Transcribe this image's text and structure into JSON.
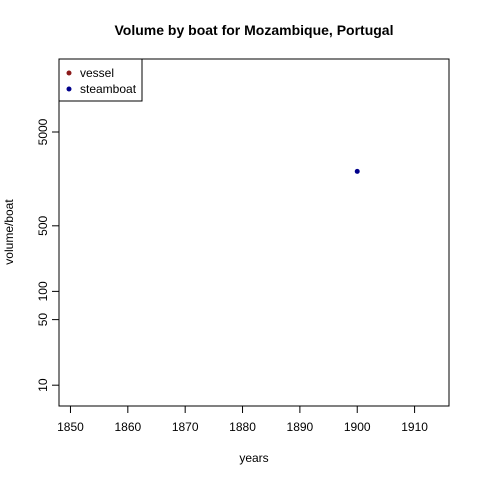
{
  "chart_data": {
    "type": "scatter",
    "title": "Volume by boat for Mozambique, Portugal",
    "xlabel": "years",
    "ylabel": "volume/boat",
    "x_scale": "linear",
    "y_scale": "log",
    "xlim": [
      1848,
      1916
    ],
    "ylim": [
      6,
      30000
    ],
    "x_ticks": [
      1850,
      1860,
      1870,
      1880,
      1890,
      1900,
      1910
    ],
    "y_ticks": [
      10,
      50,
      100,
      500,
      5000
    ],
    "grid": false,
    "legend_position": "top-left",
    "series": [
      {
        "name": "vessel",
        "color": "#8B1A1A",
        "points": []
      },
      {
        "name": "steamboat",
        "color": "#00008B",
        "points": [
          {
            "x": 1900,
            "y": 1900
          }
        ]
      }
    ]
  }
}
